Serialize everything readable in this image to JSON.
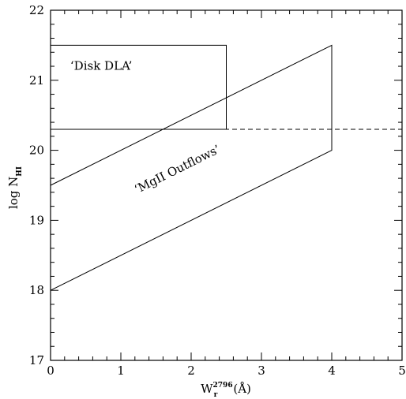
{
  "chart_data": {
    "type": "line",
    "xlabel_main": "W",
    "xlabel_sup": "2796",
    "xlabel_sub": "r",
    "xlabel_unit": "(Å)",
    "ylabel_main": "log N",
    "ylabel_sub": "HI",
    "xlim": [
      0,
      5
    ],
    "ylim": [
      17,
      22
    ],
    "xticks": [
      0,
      1,
      2,
      3,
      4,
      5
    ],
    "xtick_labels": [
      "0",
      "1",
      "2",
      "3",
      "4",
      "5"
    ],
    "yticks": [
      17,
      18,
      19,
      20,
      21,
      22
    ],
    "ytick_labels": [
      "17",
      "18",
      "19",
      "20",
      "21",
      "22"
    ],
    "grid": false,
    "series": [
      {
        "points": [
          [
            0,
            21.5
          ],
          [
            2.5,
            21.5
          ],
          [
            2.5,
            20.3
          ],
          [
            0,
            20.3
          ]
        ],
        "style": "solid"
      },
      {
        "points": [
          [
            0,
            19.5
          ],
          [
            4,
            21.5
          ],
          [
            4,
            20.0
          ],
          [
            0,
            18.0
          ]
        ],
        "style": "solid"
      },
      {
        "points": [
          [
            0,
            20.3
          ],
          [
            5,
            20.3
          ]
        ],
        "style": "dashed"
      }
    ],
    "annotations": [
      {
        "text": "‘Disk DLA’",
        "x": 0.28,
        "y": 21.15,
        "rotation": 0
      },
      {
        "text": "‘MgII Outflows’",
        "x": 1.23,
        "y": 19.38,
        "rotation": -26.5
      }
    ]
  }
}
